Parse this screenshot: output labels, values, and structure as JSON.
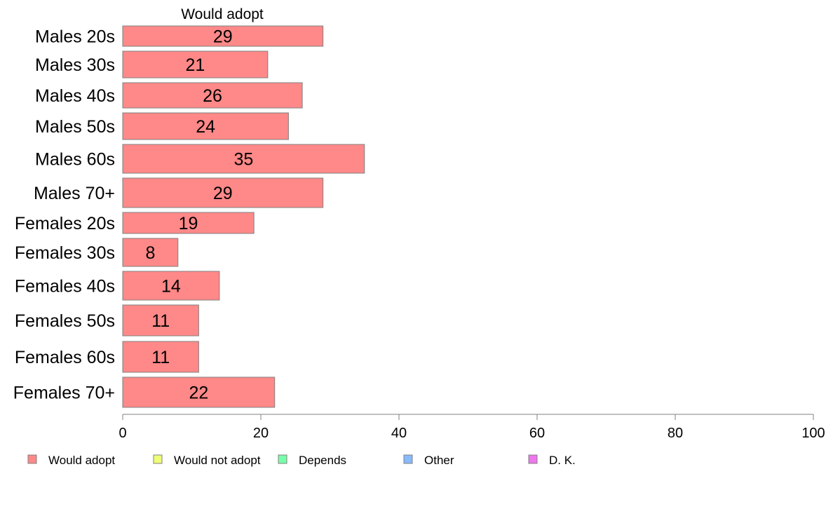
{
  "chart_data": {
    "type": "bar",
    "orientation": "horizontal",
    "title": "",
    "series_title": "Would adopt",
    "categories": [
      "Males 20s",
      "Males 30s",
      "Males 40s",
      "Males 50s",
      "Males 60s",
      "Males 70+",
      "Females 20s",
      "Females 30s",
      "Females 40s",
      "Females 50s",
      "Females 60s",
      "Females 70+"
    ],
    "series": [
      {
        "name": "Would adopt",
        "color": "#ff8888",
        "values": [
          29,
          21,
          26,
          24,
          35,
          29,
          19,
          8,
          14,
          11,
          11,
          22
        ]
      }
    ],
    "data_labels": [
      "29",
      "21",
      "26",
      "24",
      "35",
      "29",
      "19",
      "8",
      "14",
      "11",
      "11",
      "22"
    ],
    "xlim": [
      0,
      100
    ],
    "xticks": [
      0,
      20,
      40,
      60,
      80,
      100
    ],
    "xtick_labels": [
      "0",
      "20",
      "40",
      "60",
      "80",
      "100"
    ],
    "xlabel": "",
    "ylabel": "",
    "grid": false,
    "legend": {
      "position": "bottom",
      "entries": [
        {
          "label": "Would adopt",
          "color": "#ff8888"
        },
        {
          "label": "Would not adopt",
          "color": "#eeff77"
        },
        {
          "label": "Depends",
          "color": "#77ffaa"
        },
        {
          "label": "Other",
          "color": "#88bbff"
        },
        {
          "label": "D. K.",
          "color": "#ee77ee"
        }
      ]
    }
  }
}
